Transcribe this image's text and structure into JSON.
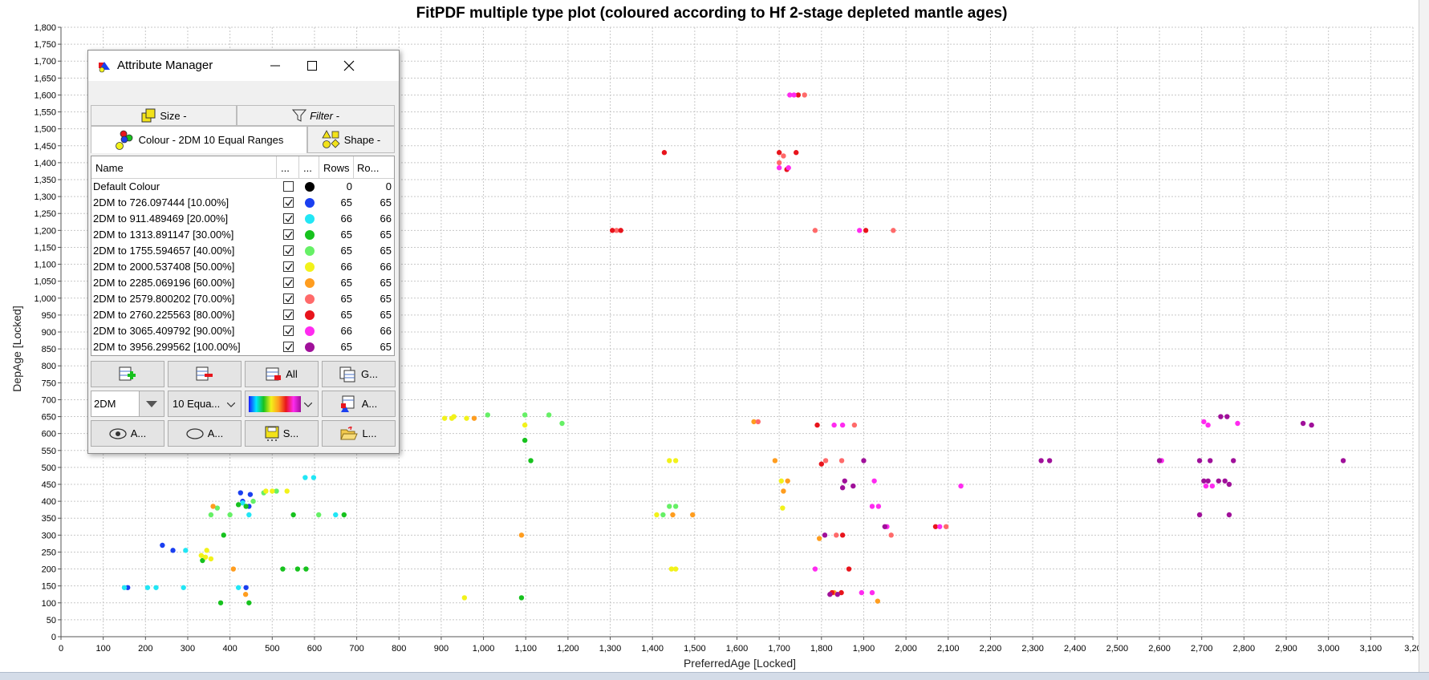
{
  "chart_data": {
    "type": "scatter",
    "title": "FitPDF multiple type plot (coloured according to Hf 2-stage depleted mantle ages)",
    "xlabel": "PreferredAge [Locked]",
    "ylabel": "DepAge [Locked]",
    "xlim": [
      0,
      3200
    ],
    "ylim": [
      0,
      1800
    ],
    "x_ticks": [
      "0",
      "100",
      "200",
      "300",
      "400",
      "500",
      "600",
      "700",
      "800",
      "900",
      "1,000",
      "1,100",
      "1,200",
      "1,300",
      "1,400",
      "1,500",
      "1,600",
      "1,700",
      "1,800",
      "1,900",
      "2,000",
      "2,100",
      "2,200",
      "2,300",
      "2,400",
      "2,500",
      "2,600",
      "2,700",
      "2,800",
      "2,900",
      "3,000",
      "3,100",
      "3,20"
    ],
    "y_ticks": [
      "0",
      "50",
      "100",
      "150",
      "200",
      "250",
      "300",
      "350",
      "400",
      "450",
      "500",
      "550",
      "600",
      "650",
      "700",
      "750",
      "800",
      "850",
      "900",
      "950",
      "1,000",
      "1,050",
      "1,100",
      "1,150",
      "1,200",
      "1,250",
      "1,300",
      "1,350",
      "1,400",
      "1,450",
      "1,500",
      "1,550",
      "1,600",
      "1,650",
      "1,700",
      "1,750",
      "1,800"
    ],
    "grid": true,
    "colors": {
      "blue": "#1a3ff0",
      "cyan": "#22e6f5",
      "green": "#17c21e",
      "lightgreen": "#66f066",
      "yellow": "#f2f21a",
      "orange": "#ff9d1f",
      "salmon": "#ff6a6a",
      "red": "#e8141c",
      "magenta": "#ff2bf0",
      "purple": "#a0109a"
    },
    "series": [
      {
        "color": "blue",
        "points": [
          [
            158,
            145
          ],
          [
            240,
            270
          ],
          [
            265,
            255
          ],
          [
            425,
            425
          ],
          [
            430,
            400
          ],
          [
            438,
            145
          ],
          [
            445,
            385
          ],
          [
            448,
            420
          ]
        ]
      },
      {
        "color": "cyan",
        "points": [
          [
            150,
            145
          ],
          [
            205,
            145
          ],
          [
            225,
            145
          ],
          [
            290,
            145
          ],
          [
            295,
            255
          ],
          [
            420,
            145
          ],
          [
            430,
            395
          ],
          [
            445,
            360
          ],
          [
            578,
            470
          ],
          [
            598,
            470
          ],
          [
            650,
            360
          ]
        ]
      },
      {
        "color": "green",
        "points": [
          [
            335,
            225
          ],
          [
            378,
            100
          ],
          [
            385,
            300
          ],
          [
            420,
            390
          ],
          [
            445,
            100
          ],
          [
            438,
            385
          ],
          [
            525,
            200
          ],
          [
            550,
            360
          ],
          [
            560,
            200
          ],
          [
            580,
            200
          ],
          [
            670,
            360
          ],
          [
            1090,
            115
          ],
          [
            1098,
            580
          ],
          [
            1112,
            520
          ]
        ]
      },
      {
        "color": "lightgreen",
        "points": [
          [
            355,
            360
          ],
          [
            370,
            380
          ],
          [
            400,
            360
          ],
          [
            455,
            400
          ],
          [
            480,
            425
          ],
          [
            510,
            430
          ],
          [
            610,
            360
          ],
          [
            1010,
            655
          ],
          [
            1098,
            655
          ],
          [
            1155,
            655
          ],
          [
            1186,
            630
          ],
          [
            1425,
            360
          ],
          [
            1440,
            385
          ],
          [
            1455,
            385
          ]
        ]
      },
      {
        "color": "yellow",
        "points": [
          [
            332,
            240
          ],
          [
            342,
            235
          ],
          [
            345,
            255
          ],
          [
            355,
            230
          ],
          [
            485,
            430
          ],
          [
            500,
            430
          ],
          [
            535,
            430
          ],
          [
            908,
            645
          ],
          [
            925,
            645
          ],
          [
            930,
            650
          ],
          [
            960,
            645
          ],
          [
            955,
            115
          ],
          [
            1098,
            625
          ],
          [
            1410,
            360
          ],
          [
            1440,
            520
          ],
          [
            1445,
            200
          ],
          [
            1455,
            200
          ],
          [
            1455,
            520
          ],
          [
            1705,
            460
          ],
          [
            1708,
            380
          ]
        ]
      },
      {
        "color": "orange",
        "points": [
          [
            360,
            385
          ],
          [
            408,
            200
          ],
          [
            437,
            125
          ],
          [
            978,
            645
          ],
          [
            1090,
            300
          ],
          [
            1448,
            360
          ],
          [
            1495,
            360
          ],
          [
            1640,
            635
          ],
          [
            1690,
            520
          ],
          [
            1710,
            430
          ],
          [
            1720,
            460
          ],
          [
            1795,
            290
          ],
          [
            1830,
            130
          ],
          [
            1933,
            105
          ]
        ]
      },
      {
        "color": "salmon",
        "points": [
          [
            1315,
            1200
          ],
          [
            1700,
            1400
          ],
          [
            1710,
            1420
          ],
          [
            1760,
            1600
          ],
          [
            1785,
            1200
          ],
          [
            1810,
            520
          ],
          [
            1835,
            300
          ],
          [
            1848,
            520
          ],
          [
            1878,
            625
          ],
          [
            1965,
            300
          ],
          [
            1970,
            1200
          ],
          [
            2095,
            325
          ],
          [
            1650,
            635
          ]
        ]
      },
      {
        "color": "red",
        "points": [
          [
            1305,
            1200
          ],
          [
            1325,
            1200
          ],
          [
            1428,
            1430
          ],
          [
            1740,
            1430
          ],
          [
            1745,
            1600
          ],
          [
            1790,
            625
          ],
          [
            1800,
            510
          ],
          [
            1825,
            130
          ],
          [
            1850,
            300
          ],
          [
            1865,
            200
          ],
          [
            1905,
            1200
          ],
          [
            2070,
            325
          ],
          [
            1700,
            1430
          ],
          [
            1718,
            1380
          ],
          [
            1847,
            130
          ]
        ]
      },
      {
        "color": "magenta",
        "points": [
          [
            1725,
            1600
          ],
          [
            1735,
            1600
          ],
          [
            1785,
            200
          ],
          [
            1830,
            625
          ],
          [
            1850,
            625
          ],
          [
            1890,
            1200
          ],
          [
            1895,
            130
          ],
          [
            1920,
            385
          ],
          [
            1925,
            460
          ],
          [
            1920,
            130
          ],
          [
            1935,
            385
          ],
          [
            1955,
            325
          ],
          [
            2130,
            445
          ],
          [
            2080,
            325
          ],
          [
            2605,
            520
          ],
          [
            2705,
            635
          ],
          [
            2715,
            625
          ],
          [
            2785,
            630
          ],
          [
            2710,
            445
          ],
          [
            2725,
            445
          ],
          [
            1700,
            1385
          ],
          [
            1722,
            1385
          ]
        ]
      },
      {
        "color": "purple",
        "points": [
          [
            1808,
            300
          ],
          [
            1820,
            125
          ],
          [
            1838,
            125
          ],
          [
            1855,
            460
          ],
          [
            1850,
            440
          ],
          [
            1875,
            445
          ],
          [
            1900,
            520
          ],
          [
            1950,
            325
          ],
          [
            2320,
            520
          ],
          [
            2340,
            520
          ],
          [
            2600,
            520
          ],
          [
            2695,
            520
          ],
          [
            2705,
            460
          ],
          [
            2715,
            460
          ],
          [
            2720,
            520
          ],
          [
            2740,
            460
          ],
          [
            2755,
            460
          ],
          [
            2745,
            650
          ],
          [
            2760,
            650
          ],
          [
            2765,
            450
          ],
          [
            2775,
            520
          ],
          [
            2695,
            360
          ],
          [
            2765,
            360
          ],
          [
            2940,
            630
          ],
          [
            2960,
            625
          ],
          [
            3035,
            520
          ]
        ]
      }
    ]
  },
  "attribute_manager": {
    "title": "Attribute Manager",
    "tabs": {
      "size": "Size -",
      "filter": "Filter -",
      "colour": "Colour - 2DM 10 Equal Ranges",
      "shape": "Shape -"
    },
    "columns": [
      "Name",
      "...",
      "...",
      "Rows",
      "Ro..."
    ],
    "rows": [
      {
        "name": "Default Colour",
        "checked": false,
        "color": "#000000",
        "rows": "0",
        "ro": "0"
      },
      {
        "name": "2DM  to 726.097444  [10.00%]",
        "checked": true,
        "color": "#1a3ff0",
        "rows": "65",
        "ro": "65"
      },
      {
        "name": "2DM  to 911.489469  [20.00%]",
        "checked": true,
        "color": "#22e6f5",
        "rows": "66",
        "ro": "66"
      },
      {
        "name": "2DM  to 1313.891147  [30.00%]",
        "checked": true,
        "color": "#17c21e",
        "rows": "65",
        "ro": "65"
      },
      {
        "name": "2DM  to 1755.594657  [40.00%]",
        "checked": true,
        "color": "#66f066",
        "rows": "65",
        "ro": "65"
      },
      {
        "name": "2DM  to 2000.537408  [50.00%]",
        "checked": true,
        "color": "#f2f21a",
        "rows": "66",
        "ro": "66"
      },
      {
        "name": "2DM  to 2285.069196  [60.00%]",
        "checked": true,
        "color": "#ff9d1f",
        "rows": "65",
        "ro": "65"
      },
      {
        "name": "2DM  to 2579.800202  [70.00%]",
        "checked": true,
        "color": "#ff6a6a",
        "rows": "65",
        "ro": "65"
      },
      {
        "name": "2DM  to 2760.225563  [80.00%]",
        "checked": true,
        "color": "#e8141c",
        "rows": "65",
        "ro": "65"
      },
      {
        "name": "2DM  to 3065.409792  [90.00%]",
        "checked": true,
        "color": "#ff2bf0",
        "rows": "66",
        "ro": "66"
      },
      {
        "name": "2DM  to 3956.299562  [100.00%]",
        "checked": true,
        "color": "#a0109a",
        "rows": "65",
        "ro": "65"
      }
    ],
    "buttons": {
      "all": "All",
      "g": "G...",
      "a1": "A...",
      "a2": "A...",
      "a3": "A...",
      "s": "S...",
      "l": "L..."
    },
    "combos": {
      "attribute": "2DM",
      "ranges": "10 Equa..."
    }
  }
}
